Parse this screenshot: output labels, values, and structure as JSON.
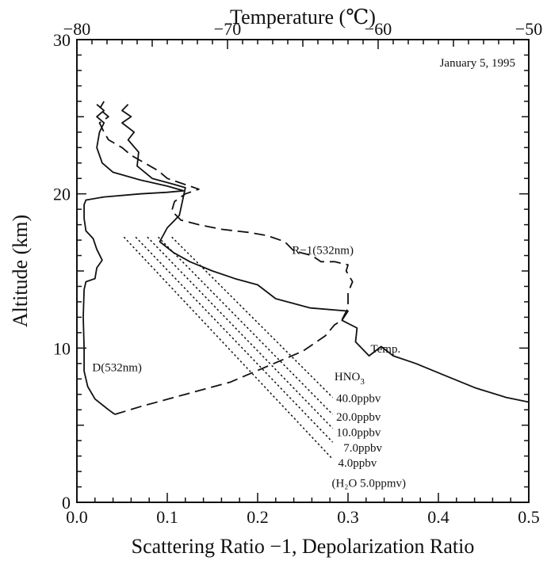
{
  "chart_data": {
    "type": "line",
    "top_axis": {
      "label": "Temperature (℃)",
      "range": [
        -80,
        -50
      ],
      "ticks": [
        -80,
        -70,
        -60,
        -50
      ],
      "tick_labels": [
        "−80",
        "−70",
        "−60",
        "−50"
      ]
    },
    "bottom_axis": {
      "label": "Scattering Ratio −1, Depolarization Ratio",
      "range": [
        0.0,
        0.5
      ],
      "ticks": [
        0.0,
        0.1,
        0.2,
        0.3,
        0.4,
        0.5
      ],
      "tick_labels": [
        "0.0",
        "0.1",
        "0.2",
        "0.3",
        "0.4",
        "0.5"
      ]
    },
    "y_axis": {
      "label": "Altitude (km)",
      "range": [
        0,
        30
      ],
      "ticks": [
        0,
        10,
        20,
        30
      ],
      "tick_labels": [
        "0",
        "10",
        "20",
        "30"
      ]
    },
    "date_label": "January 5, 1995",
    "series": [
      {
        "name": "Temp.",
        "axis": "top",
        "style": "solid",
        "points": [
          [
            -50.0,
            6.5
          ],
          [
            -51.5,
            6.8
          ],
          [
            -53.5,
            7.4
          ],
          [
            -55.5,
            8.2
          ],
          [
            -57.5,
            9.0
          ],
          [
            -59.0,
            9.5
          ],
          [
            -59.8,
            10.1
          ],
          [
            -60.6,
            9.5
          ],
          [
            -61.5,
            10.4
          ],
          [
            -61.4,
            11.3
          ],
          [
            -62.4,
            11.8
          ],
          [
            -62.0,
            12.4
          ],
          [
            -64.5,
            12.6
          ],
          [
            -66.8,
            13.2
          ],
          [
            -68.0,
            14.1
          ],
          [
            -69.5,
            14.5
          ],
          [
            -71.0,
            15.0
          ],
          [
            -72.5,
            15.6
          ],
          [
            -73.6,
            16.2
          ],
          [
            -74.5,
            16.9
          ],
          [
            -74.0,
            17.8
          ],
          [
            -73.2,
            18.6
          ],
          [
            -73.0,
            19.5
          ],
          [
            -72.8,
            20.4
          ],
          [
            -73.5,
            20.6
          ],
          [
            -75.0,
            21.0
          ],
          [
            -76.0,
            21.8
          ],
          [
            -75.9,
            22.7
          ],
          [
            -76.6,
            23.5
          ],
          [
            -76.2,
            24.0
          ],
          [
            -77.0,
            24.6
          ],
          [
            -76.4,
            25.0
          ],
          [
            -77.0,
            25.4
          ],
          [
            -76.6,
            25.8
          ]
        ]
      },
      {
        "name": "R-1(532nm)",
        "axis": "bottom",
        "style": "dashed",
        "points": [
          [
            0.042,
            5.7
          ],
          [
            0.07,
            6.2
          ],
          [
            0.12,
            7.0
          ],
          [
            0.17,
            7.8
          ],
          [
            0.21,
            8.8
          ],
          [
            0.25,
            9.8
          ],
          [
            0.275,
            10.8
          ],
          [
            0.285,
            11.5
          ],
          [
            0.293,
            11.8
          ],
          [
            0.3,
            12.6
          ],
          [
            0.3,
            13.6
          ],
          [
            0.305,
            14.3
          ],
          [
            0.298,
            15.0
          ],
          [
            0.3,
            15.4
          ],
          [
            0.285,
            15.6
          ],
          [
            0.27,
            15.6
          ],
          [
            0.26,
            16.0
          ],
          [
            0.24,
            16.3
          ],
          [
            0.23,
            16.9
          ],
          [
            0.21,
            17.3
          ],
          [
            0.19,
            17.5
          ],
          [
            0.16,
            17.7
          ],
          [
            0.135,
            18.0
          ],
          [
            0.115,
            18.3
          ],
          [
            0.105,
            18.9
          ],
          [
            0.108,
            19.5
          ],
          [
            0.12,
            20.0
          ],
          [
            0.135,
            20.3
          ],
          [
            0.12,
            20.6
          ],
          [
            0.1,
            21.0
          ],
          [
            0.09,
            21.5
          ],
          [
            0.075,
            22.0
          ],
          [
            0.06,
            22.5
          ],
          [
            0.05,
            23.0
          ],
          [
            0.035,
            23.5
          ],
          [
            0.03,
            24.0
          ],
          [
            0.025,
            24.6
          ],
          [
            0.035,
            25.0
          ],
          [
            0.025,
            25.5
          ],
          [
            0.03,
            26.0
          ]
        ]
      },
      {
        "name": "D(532nm)",
        "axis": "bottom",
        "style": "solid",
        "points": [
          [
            0.042,
            5.7
          ],
          [
            0.035,
            6.0
          ],
          [
            0.02,
            6.7
          ],
          [
            0.012,
            7.5
          ],
          [
            0.008,
            8.5
          ],
          [
            0.008,
            10.0
          ],
          [
            0.007,
            12.0
          ],
          [
            0.008,
            13.8
          ],
          [
            0.01,
            14.3
          ],
          [
            0.02,
            14.5
          ],
          [
            0.022,
            15.2
          ],
          [
            0.028,
            15.7
          ],
          [
            0.022,
            16.4
          ],
          [
            0.018,
            17.1
          ],
          [
            0.01,
            17.6
          ],
          [
            0.008,
            18.4
          ],
          [
            0.008,
            19.3
          ],
          [
            0.01,
            19.6
          ],
          [
            0.03,
            19.8
          ],
          [
            0.07,
            20.0
          ],
          [
            0.1,
            20.1
          ],
          [
            0.118,
            20.2
          ],
          [
            0.1,
            20.5
          ],
          [
            0.07,
            20.9
          ],
          [
            0.04,
            21.4
          ],
          [
            0.028,
            22.0
          ],
          [
            0.022,
            23.0
          ],
          [
            0.025,
            24.0
          ],
          [
            0.03,
            24.6
          ],
          [
            0.022,
            25.0
          ],
          [
            0.03,
            25.4
          ],
          [
            0.022,
            25.8
          ]
        ]
      },
      {
        "name": "40.0ppbv",
        "axis": "bottom",
        "style": "dotted",
        "points": [
          [
            0.105,
            17.2
          ],
          [
            0.283,
            6.8
          ]
        ]
      },
      {
        "name": "20.0ppbv",
        "axis": "bottom",
        "style": "dotted",
        "points": [
          [
            0.09,
            17.2
          ],
          [
            0.283,
            5.7
          ]
        ]
      },
      {
        "name": "10.0ppbv",
        "axis": "bottom",
        "style": "dotted",
        "points": [
          [
            0.078,
            17.2
          ],
          [
            0.283,
            4.8
          ]
        ]
      },
      {
        "name": "7.0ppbv",
        "axis": "bottom",
        "style": "dotted",
        "points": [
          [
            0.065,
            17.2
          ],
          [
            0.283,
            3.9
          ]
        ]
      },
      {
        "name": "4.0ppbv",
        "axis": "bottom",
        "style": "dotted",
        "points": [
          [
            0.052,
            17.2
          ],
          [
            0.283,
            2.8
          ]
        ]
      }
    ],
    "series_labels": [
      {
        "text": "R−1(532nm)",
        "x": 0.238,
        "y": 16.1
      },
      {
        "text": "Temp.",
        "x": 0.325,
        "y": 9.7
      },
      {
        "text": "D(532nm)",
        "x": 0.017,
        "y": 8.5
      },
      {
        "text": "40.0ppbv",
        "x": 0.287,
        "y": 6.5
      },
      {
        "text": "20.0ppbv",
        "x": 0.287,
        "y": 5.3
      },
      {
        "text": "10.0ppbv",
        "x": 0.287,
        "y": 4.3
      },
      {
        "text": "7.0ppbv",
        "x": 0.295,
        "y": 3.3
      },
      {
        "text": "4.0ppbv",
        "x": 0.289,
        "y": 2.3
      },
      {
        "text": "(H₂O 5.0ppmv)",
        "x": 0.282,
        "y": 1.0
      }
    ],
    "hno3_label": {
      "prefix": "HNO",
      "subscript": "3",
      "x": 0.285,
      "y": 7.9
    },
    "grid": false
  }
}
